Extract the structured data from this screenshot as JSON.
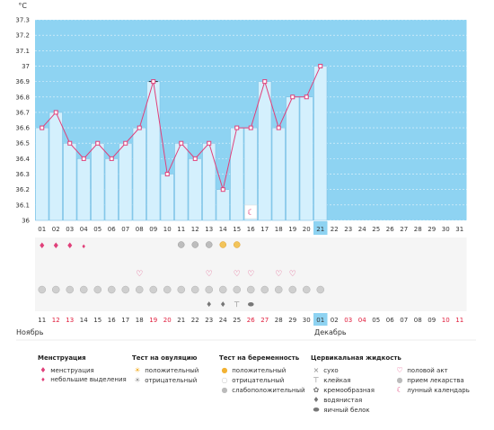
{
  "chart_data": {
    "type": "line",
    "unit_label": "°C",
    "ylim": [
      36,
      37.3
    ],
    "yticks": [
      "36",
      "36.1",
      "36.2",
      "36.3",
      "36.4",
      "36.5",
      "36.6",
      "36.7",
      "36.8",
      "36.9",
      "37",
      "37.1",
      "37.2",
      "37.3"
    ],
    "cycle_days": [
      "01",
      "02",
      "03",
      "04",
      "05",
      "06",
      "07",
      "08",
      "09",
      "10",
      "11",
      "12",
      "13",
      "14",
      "15",
      "16",
      "17",
      "18",
      "19",
      "20",
      "21",
      "22",
      "23",
      "24",
      "25",
      "26",
      "27",
      "28",
      "29",
      "30",
      "31"
    ],
    "values": [
      36.6,
      36.7,
      36.5,
      36.4,
      36.5,
      36.4,
      36.5,
      36.6,
      36.9,
      36.3,
      36.5,
      36.4,
      36.5,
      36.2,
      36.6,
      36.6,
      36.9,
      36.6,
      36.8,
      36.8,
      37.0
    ],
    "selected_day": "21",
    "calendar_dates": [
      "11",
      "12",
      "13",
      "14",
      "15",
      "16",
      "17",
      "18",
      "19",
      "20",
      "21",
      "22",
      "23",
      "24",
      "25",
      "26",
      "27",
      "28",
      "29",
      "30",
      "01",
      "02",
      "03",
      "04",
      "05",
      "06",
      "07",
      "08",
      "09",
      "10",
      "11"
    ],
    "weekend_indices": [
      1,
      2,
      8,
      9,
      15,
      16,
      22,
      23,
      29,
      30
    ],
    "month_start": "Ноябрь",
    "month_next": "Декабрь",
    "next_month_index": 20,
    "grid": true,
    "colors": {
      "plot_bg": "#8ed3f2",
      "bar_fill": "#d4f0fd",
      "bar_edge": "#7cc0e4",
      "line": "#e0407a",
      "weekend_text": "#e01a3a",
      "text": "#333333",
      "selected_bg": "#8ed3f2"
    },
    "rows": {
      "menstruation": [
        "full",
        "full",
        "full",
        "small",
        "",
        "",
        "",
        "",
        "",
        "",
        "",
        "",
        "",
        "",
        "",
        "",
        "",
        "",
        "",
        "",
        "",
        "",
        "",
        "",
        "",
        "",
        "",
        "",
        "",
        "",
        ""
      ],
      "ovulation_test": [
        "",
        "",
        "",
        "",
        "",
        "",
        "",
        "",
        "",
        "",
        "negative",
        "negative",
        "negative",
        "positive",
        "positive",
        "",
        "",
        "",
        "",
        "",
        "",
        "",
        "",
        "",
        "",
        "",
        "",
        "",
        "",
        "",
        ""
      ],
      "intercourse": [
        "",
        "",
        "",
        "",
        "",
        "",
        "",
        "yes",
        "",
        "",
        "",
        "",
        "yes",
        "",
        "yes",
        "yes",
        "",
        "yes",
        "yes",
        "",
        "",
        "",
        "",
        "",
        "",
        "",
        "",
        "",
        "",
        "",
        ""
      ],
      "pregnancy_test": [
        "faint",
        "faint",
        "faint",
        "faint",
        "faint",
        "faint",
        "faint",
        "faint",
        "faint",
        "faint",
        "faint",
        "faint",
        "faint",
        "faint",
        "faint",
        "faint",
        "faint",
        "faint",
        "faint",
        "faint",
        "faint",
        "",
        "",
        "",
        "",
        "",
        "",
        "",
        "",
        "",
        ""
      ],
      "cervical_fluid": [
        "",
        "",
        "",
        "",
        "",
        "",
        "",
        "",
        "",
        "",
        "",
        "",
        "watery",
        "watery",
        "sticky",
        "egg_white",
        "",
        "",
        "",
        "",
        "",
        "",
        "",
        "",
        "",
        "",
        "",
        "",
        "",
        "",
        ""
      ],
      "lunar_marker_index": 15
    }
  },
  "legend": {
    "menstruation": {
      "title": "Менструация",
      "items": [
        {
          "label": "менструация",
          "icon": "menstruation-drop-icon"
        },
        {
          "label": "небольшие выделения",
          "icon": "small-drop-icon"
        }
      ]
    },
    "ovulation": {
      "title": "Тест на овуляцию",
      "items": [
        {
          "label": "положительный",
          "icon": "positive-sun-icon"
        },
        {
          "label": "отрицательный",
          "icon": "negative-sun-icon"
        }
      ]
    },
    "pregnancy": {
      "title": "Тест на беременность",
      "items": [
        {
          "label": "положительный",
          "icon": "positive-circle-icon"
        },
        {
          "label": "отрицательный",
          "icon": "negative-circle-icon"
        },
        {
          "label": "слабоположительный",
          "icon": "faint-circle-icon"
        }
      ]
    },
    "cervical": {
      "title": "Цервикальная жидкость",
      "items": [
        {
          "label": "сухо",
          "icon": "dry-cross-icon"
        },
        {
          "label": "клейкая",
          "icon": "sticky-icon"
        },
        {
          "label": "кремообразная",
          "icon": "creamy-icon"
        },
        {
          "label": "водянистая",
          "icon": "watery-drop-icon"
        },
        {
          "label": "яичный белок",
          "icon": "egg-white-icon"
        }
      ],
      "extra": [
        {
          "label": "половой акт",
          "icon": "heart-icon"
        },
        {
          "label": "прием лекарства",
          "icon": "pill-icon"
        },
        {
          "label": "лунный календарь",
          "icon": "moon-icon"
        }
      ]
    }
  }
}
